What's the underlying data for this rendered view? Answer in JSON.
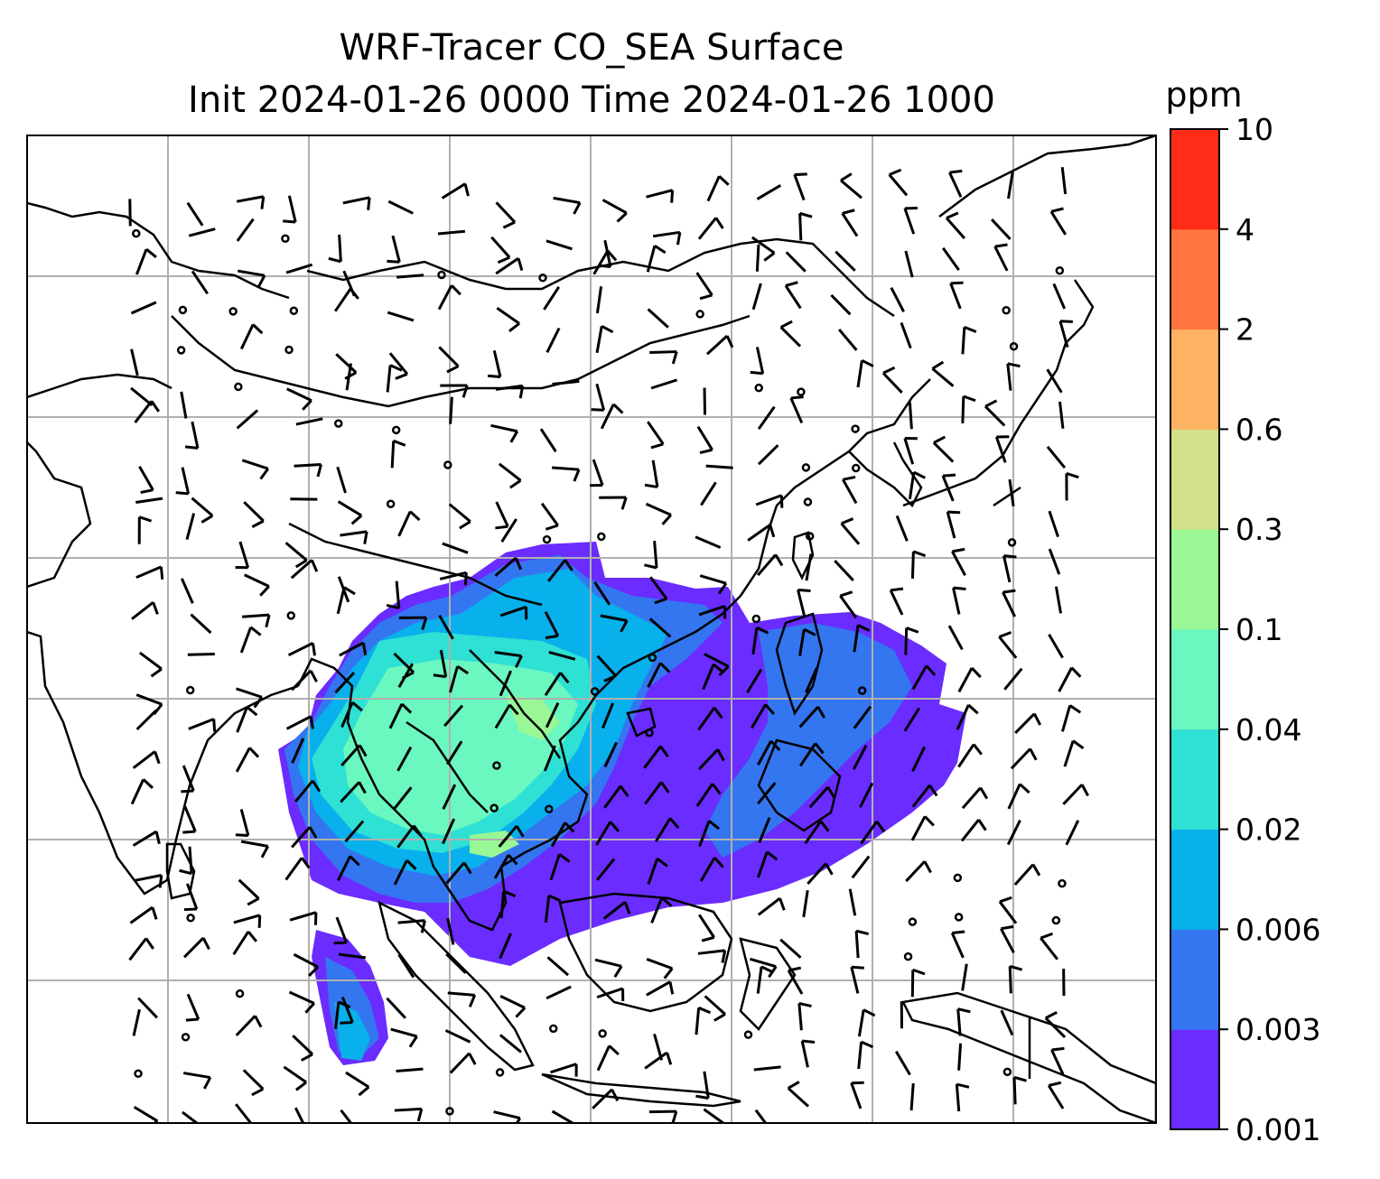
{
  "title": {
    "line1": "WRF-Tracer CO_SEA Surface",
    "line2": "Init 2024-01-26 0000 Time 2024-01-26 1000"
  },
  "colorbar": {
    "unit_label": "ppm",
    "ticks": [
      "0.001",
      "0.003",
      "0.006",
      "0.02",
      "0.04",
      "0.1",
      "0.3",
      "0.6",
      "2",
      "4",
      "10"
    ],
    "colors": [
      "#6a2cff",
      "#3476f0",
      "#08b0ec",
      "#2fe0d4",
      "#6bf7c0",
      "#9af796",
      "#d2e08a",
      "#fdb362",
      "#ff743f",
      "#ff2c18"
    ]
  },
  "chart_data": {
    "type": "heatmap",
    "title": "WRF-Tracer CO_SEA Surface",
    "subtitle": "Init 2024-01-26 0000 Time 2024-01-26 1000",
    "variable": "CO_SEA surface tracer",
    "units": "ppm",
    "levels": [
      0.001,
      0.003,
      0.006,
      0.02,
      0.04,
      0.1,
      0.3,
      0.6,
      2,
      4,
      10
    ],
    "grid": true,
    "overlay": "wind barbs",
    "coastlines": true
  }
}
